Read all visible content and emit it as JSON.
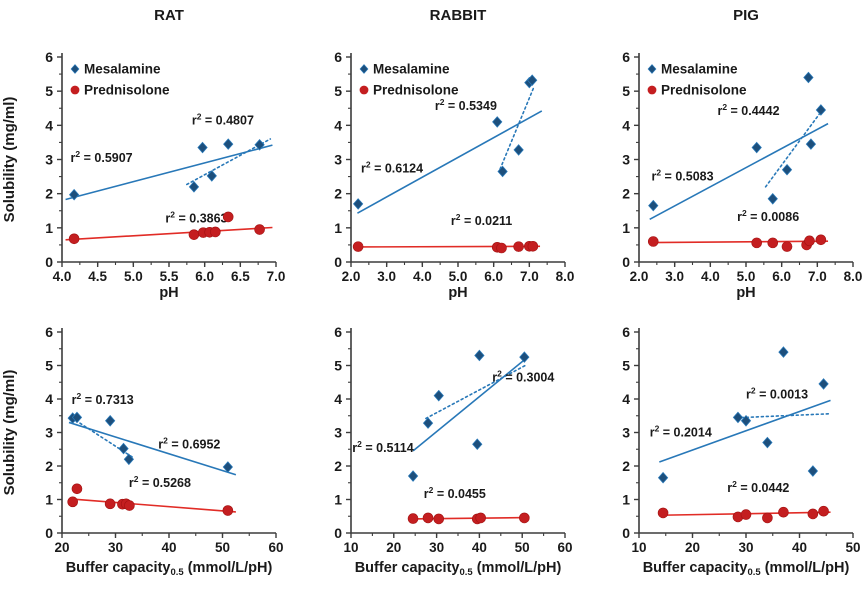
{
  "figure": {
    "ylabel": "Solubility (mg/ml)",
    "colors": {
      "mesalamine_marker": "#1d4f7c",
      "mesalamine_line": "#2878b8",
      "prednisolone_marker": "#c41e20",
      "prednisolone_line": "#e12c26",
      "black_text": "#1a1a1a",
      "blue_text": "#2878b8",
      "red_text": "#e8201a",
      "axis": "#3c3c3c"
    },
    "legend": {
      "items": [
        {
          "label": "Mesalamine",
          "marker": "diamond",
          "color": "#1d4f7c"
        },
        {
          "label": "Prednisolone",
          "marker": "circle",
          "color": "#c41e20"
        }
      ]
    }
  },
  "chart_data": [
    {
      "type": "scatter",
      "title": "RAT",
      "legend": true,
      "xlabel": {
        "text": "pH",
        "sub": "",
        "rest": ""
      },
      "ylabel": "Solubility (mg/ml)",
      "xlim": [
        4.0,
        7.0
      ],
      "ylim": [
        0,
        6
      ],
      "xminor": 0.25,
      "yminor": 0.5,
      "xticks": [
        [
          4.0,
          "4.0"
        ],
        [
          4.5,
          "4.5"
        ],
        [
          5.0,
          "5.0"
        ],
        [
          5.5,
          "5.5"
        ],
        [
          6.0,
          "6.0"
        ],
        [
          6.5,
          "6.5"
        ],
        [
          7.0,
          "7.0"
        ]
      ],
      "yticks": [
        [
          0,
          "0"
        ],
        [
          1,
          "1"
        ],
        [
          2,
          "2"
        ],
        [
          3,
          "3"
        ],
        [
          4,
          "4"
        ],
        [
          5,
          "5"
        ],
        [
          6,
          "6"
        ]
      ],
      "series": [
        {
          "name": "Mesalamine",
          "marker": "diamond",
          "points": [
            [
              4.17,
              1.97
            ],
            [
              5.85,
              2.2
            ],
            [
              5.97,
              3.35
            ],
            [
              6.1,
              2.52
            ],
            [
              6.33,
              3.45
            ],
            [
              6.77,
              3.43
            ]
          ],
          "trends": [
            {
              "style": "solid",
              "x1": 4.05,
              "y1": 1.83,
              "x2": 6.95,
              "y2": 3.42,
              "r2": "0.5907",
              "label_x": 4.12,
              "label_y": 2.92,
              "label_color": "black"
            },
            {
              "style": "dotted",
              "x1": 5.75,
              "y1": 2.27,
              "x2": 6.92,
              "y2": 3.6,
              "r2": "0.4807",
              "label_x": 5.82,
              "label_y": 4.02,
              "label_color": "blue"
            }
          ]
        },
        {
          "name": "Prednisolone",
          "marker": "circle",
          "points": [
            [
              4.17,
              0.68
            ],
            [
              5.85,
              0.8
            ],
            [
              5.98,
              0.86
            ],
            [
              6.07,
              0.87
            ],
            [
              6.15,
              0.88
            ],
            [
              6.33,
              1.32
            ],
            [
              6.77,
              0.95
            ]
          ],
          "trends": [
            {
              "style": "solid",
              "x1": 4.05,
              "y1": 0.65,
              "x2": 6.95,
              "y2": 1.01,
              "r2": "0.3863",
              "label_x": 5.45,
              "label_y": 1.15,
              "label_color": "red"
            }
          ]
        }
      ]
    },
    {
      "type": "scatter",
      "title": "RABBIT",
      "legend": true,
      "xlabel": {
        "text": "pH",
        "sub": "",
        "rest": ""
      },
      "ylabel": "",
      "xlim": [
        2.0,
        8.0
      ],
      "ylim": [
        0,
        6
      ],
      "xminor": 0.5,
      "yminor": 0.5,
      "xticks": [
        [
          2.0,
          "2.0"
        ],
        [
          3.0,
          "3.0"
        ],
        [
          4.0,
          "4.0"
        ],
        [
          5.0,
          "5.0"
        ],
        [
          6.0,
          "6.0"
        ],
        [
          7.0,
          "7.0"
        ],
        [
          8.0,
          "8.0"
        ]
      ],
      "yticks": [
        [
          0,
          "0"
        ],
        [
          1,
          "1"
        ],
        [
          2,
          "2"
        ],
        [
          3,
          "3"
        ],
        [
          4,
          "4"
        ],
        [
          5,
          "5"
        ],
        [
          6,
          "6"
        ]
      ],
      "series": [
        {
          "name": "Mesalamine",
          "marker": "diamond",
          "points": [
            [
              2.2,
              1.7
            ],
            [
              6.1,
              4.1
            ],
            [
              6.25,
              2.65
            ],
            [
              6.7,
              3.28
            ],
            [
              7.0,
              5.25
            ],
            [
              7.08,
              5.32
            ]
          ],
          "trends": [
            {
              "style": "solid",
              "x1": 2.18,
              "y1": 1.43,
              "x2": 7.35,
              "y2": 4.42,
              "r2": "0.6124",
              "label_x": 2.28,
              "label_y": 2.62,
              "label_color": "black"
            },
            {
              "style": "dotted",
              "x1": 6.18,
              "y1": 2.72,
              "x2": 7.12,
              "y2": 5.1,
              "r2": "0.5349",
              "label_x": 4.35,
              "label_y": 4.45,
              "label_color": "blue"
            }
          ]
        },
        {
          "name": "Prednisolone",
          "marker": "circle",
          "points": [
            [
              2.2,
              0.45
            ],
            [
              6.1,
              0.43
            ],
            [
              6.22,
              0.41
            ],
            [
              6.7,
              0.45
            ],
            [
              7.0,
              0.46
            ],
            [
              7.1,
              0.46
            ]
          ],
          "trends": [
            {
              "style": "solid",
              "x1": 2.15,
              "y1": 0.44,
              "x2": 7.3,
              "y2": 0.46,
              "r2": "0.0211",
              "label_x": 4.8,
              "label_y": 1.08,
              "label_color": "red"
            }
          ]
        }
      ]
    },
    {
      "type": "scatter",
      "title": "PIG",
      "legend": true,
      "xlabel": {
        "text": "pH",
        "sub": "",
        "rest": ""
      },
      "ylabel": "",
      "xlim": [
        2.0,
        8.0
      ],
      "ylim": [
        0,
        6
      ],
      "xminor": 0.5,
      "yminor": 0.5,
      "xticks": [
        [
          2.0,
          "2.0"
        ],
        [
          3.0,
          "3.0"
        ],
        [
          4.0,
          "4.0"
        ],
        [
          5.0,
          "5.0"
        ],
        [
          6.0,
          "6.0"
        ],
        [
          7.0,
          "7.0"
        ],
        [
          8.0,
          "8.0"
        ]
      ],
      "yticks": [
        [
          0,
          "0"
        ],
        [
          1,
          "1"
        ],
        [
          2,
          "2"
        ],
        [
          3,
          "3"
        ],
        [
          4,
          "4"
        ],
        [
          5,
          "5"
        ],
        [
          6,
          "6"
        ]
      ],
      "series": [
        {
          "name": "Mesalamine",
          "marker": "diamond",
          "points": [
            [
              2.4,
              1.65
            ],
            [
              5.3,
              3.35
            ],
            [
              5.75,
              1.85
            ],
            [
              6.15,
              2.7
            ],
            [
              6.75,
              5.4
            ],
            [
              6.82,
              3.45
            ],
            [
              7.1,
              4.45
            ]
          ],
          "trends": [
            {
              "style": "solid",
              "x1": 2.3,
              "y1": 1.25,
              "x2": 7.3,
              "y2": 4.05,
              "r2": "0.5083",
              "label_x": 2.35,
              "label_y": 2.38,
              "label_color": "black"
            },
            {
              "style": "dotted",
              "x1": 5.55,
              "y1": 2.2,
              "x2": 7.12,
              "y2": 4.42,
              "r2": "0.4442",
              "label_x": 4.2,
              "label_y": 4.3,
              "label_color": "blue"
            }
          ]
        },
        {
          "name": "Prednisolone",
          "marker": "circle",
          "points": [
            [
              2.4,
              0.6
            ],
            [
              5.3,
              0.56
            ],
            [
              5.75,
              0.56
            ],
            [
              6.15,
              0.45
            ],
            [
              6.7,
              0.5
            ],
            [
              6.78,
              0.62
            ],
            [
              7.1,
              0.65
            ]
          ],
          "trends": [
            {
              "style": "solid",
              "x1": 2.3,
              "y1": 0.57,
              "x2": 7.3,
              "y2": 0.61,
              "r2": "0.0086",
              "label_x": 4.75,
              "label_y": 1.2,
              "label_color": "red"
            }
          ]
        }
      ]
    },
    {
      "type": "scatter",
      "title": "",
      "legend": false,
      "xlabel": {
        "text": "Buffer capacity",
        "sub": "0.5",
        "rest": " (mmol/L/pH)"
      },
      "ylabel": "Solubility (mg/ml)",
      "xlim": [
        20,
        60
      ],
      "ylim": [
        0,
        6
      ],
      "xminor": 5,
      "yminor": 0.5,
      "xticks": [
        [
          20,
          "20"
        ],
        [
          30,
          "30"
        ],
        [
          40,
          "40"
        ],
        [
          50,
          "50"
        ],
        [
          60,
          "60"
        ]
      ],
      "yticks": [
        [
          0,
          "0"
        ],
        [
          1,
          "1"
        ],
        [
          2,
          "2"
        ],
        [
          3,
          "3"
        ],
        [
          4,
          "4"
        ],
        [
          5,
          "5"
        ],
        [
          6,
          "6"
        ]
      ],
      "series": [
        {
          "name": "Mesalamine",
          "marker": "diamond",
          "points": [
            [
              22.0,
              3.43
            ],
            [
              22.8,
              3.45
            ],
            [
              29.0,
              3.35
            ],
            [
              31.5,
              2.52
            ],
            [
              32.5,
              2.2
            ],
            [
              51.0,
              1.97
            ]
          ],
          "trends": [
            {
              "style": "solid",
              "x1": 21.3,
              "y1": 3.3,
              "x2": 52.5,
              "y2": 1.74,
              "r2": "0.6952",
              "label_x": 38.0,
              "label_y": 2.52,
              "label_color": "black"
            },
            {
              "style": "dotted",
              "x1": 21.8,
              "y1": 3.44,
              "x2": 33.2,
              "y2": 2.26,
              "r2": "0.7313",
              "label_x": 21.8,
              "label_y": 3.85,
              "label_color": "blue"
            }
          ]
        },
        {
          "name": "Prednisolone",
          "marker": "circle",
          "points": [
            [
              22.0,
              0.93
            ],
            [
              22.8,
              1.32
            ],
            [
              29.0,
              0.87
            ],
            [
              31.3,
              0.86
            ],
            [
              32.0,
              0.87
            ],
            [
              32.6,
              0.82
            ],
            [
              51.0,
              0.67
            ]
          ],
          "trends": [
            {
              "style": "solid",
              "x1": 21.3,
              "y1": 1.02,
              "x2": 52.5,
              "y2": 0.63,
              "r2": "0.5268",
              "label_x": 32.5,
              "label_y": 1.38,
              "label_color": "red"
            }
          ]
        }
      ]
    },
    {
      "type": "scatter",
      "title": "",
      "legend": false,
      "xlabel": {
        "text": "Buffer capacity",
        "sub": "0.5",
        "rest": " (mmol/L/pH)"
      },
      "ylabel": "",
      "xlim": [
        10,
        60
      ],
      "ylim": [
        0,
        6
      ],
      "xminor": 5,
      "yminor": 0.5,
      "xticks": [
        [
          10,
          "10"
        ],
        [
          20,
          "20"
        ],
        [
          30,
          "30"
        ],
        [
          40,
          "40"
        ],
        [
          50,
          "50"
        ],
        [
          60,
          "60"
        ]
      ],
      "yticks": [
        [
          0,
          "0"
        ],
        [
          1,
          "1"
        ],
        [
          2,
          "2"
        ],
        [
          3,
          "3"
        ],
        [
          4,
          "4"
        ],
        [
          5,
          "5"
        ],
        [
          6,
          "6"
        ]
      ],
      "series": [
        {
          "name": "Mesalamine",
          "marker": "diamond",
          "points": [
            [
              24.5,
              1.7
            ],
            [
              28.0,
              3.28
            ],
            [
              30.5,
              4.1
            ],
            [
              39.5,
              2.65
            ],
            [
              40.0,
              5.3
            ],
            [
              50.5,
              5.25
            ]
          ],
          "trends": [
            {
              "style": "solid",
              "x1": 24.5,
              "y1": 2.45,
              "x2": 51.0,
              "y2": 5.22,
              "r2": "0.5114",
              "label_x": 10.3,
              "label_y": 2.42,
              "label_color": "black"
            },
            {
              "style": "dotted",
              "x1": 27.5,
              "y1": 3.42,
              "x2": 51.0,
              "y2": 5.02,
              "r2": "0.3004",
              "label_x": 43.0,
              "label_y": 4.52,
              "label_color": "blue"
            }
          ]
        },
        {
          "name": "Prednisolone",
          "marker": "circle",
          "points": [
            [
              24.5,
              0.43
            ],
            [
              28.0,
              0.45
            ],
            [
              30.5,
              0.42
            ],
            [
              39.5,
              0.42
            ],
            [
              40.3,
              0.45
            ],
            [
              50.5,
              0.45
            ]
          ],
          "trends": [
            {
              "style": "solid",
              "x1": 24.0,
              "y1": 0.42,
              "x2": 51.0,
              "y2": 0.46,
              "r2": "0.0455",
              "label_x": 27.0,
              "label_y": 1.05,
              "label_color": "red"
            }
          ]
        }
      ]
    },
    {
      "type": "scatter",
      "title": "",
      "legend": false,
      "xlabel": {
        "text": "Buffer capacity",
        "sub": "0.5",
        "rest": " (mmol/L/pH)"
      },
      "ylabel": "",
      "xlim": [
        10,
        50
      ],
      "ylim": [
        0,
        6
      ],
      "xminor": 5,
      "yminor": 0.5,
      "xticks": [
        [
          10,
          "10"
        ],
        [
          20,
          "20"
        ],
        [
          30,
          "30"
        ],
        [
          40,
          "40"
        ],
        [
          50,
          "50"
        ]
      ],
      "yticks": [
        [
          0,
          "0"
        ],
        [
          1,
          "1"
        ],
        [
          2,
          "2"
        ],
        [
          3,
          "3"
        ],
        [
          4,
          "4"
        ],
        [
          5,
          "5"
        ],
        [
          6,
          "6"
        ]
      ],
      "series": [
        {
          "name": "Mesalamine",
          "marker": "diamond",
          "points": [
            [
              14.5,
              1.65
            ],
            [
              28.5,
              3.45
            ],
            [
              30.0,
              3.35
            ],
            [
              34.0,
              2.7
            ],
            [
              37.0,
              5.4
            ],
            [
              42.5,
              1.85
            ],
            [
              44.5,
              4.45
            ]
          ],
          "trends": [
            {
              "style": "solid",
              "x1": 13.8,
              "y1": 2.12,
              "x2": 45.8,
              "y2": 3.96,
              "r2": "0.2014",
              "label_x": 12.0,
              "label_y": 2.88,
              "label_color": "black"
            },
            {
              "style": "dotted",
              "x1": 28.2,
              "y1": 3.44,
              "x2": 45.8,
              "y2": 3.56,
              "r2": "0.0013",
              "label_x": 30.0,
              "label_y": 4.02,
              "label_color": "blue"
            }
          ]
        },
        {
          "name": "Prednisolone",
          "marker": "circle",
          "points": [
            [
              14.5,
              0.6
            ],
            [
              28.5,
              0.48
            ],
            [
              30.0,
              0.55
            ],
            [
              34.0,
              0.45
            ],
            [
              37.0,
              0.62
            ],
            [
              42.5,
              0.57
            ],
            [
              44.5,
              0.65
            ]
          ],
          "trends": [
            {
              "style": "solid",
              "x1": 13.8,
              "y1": 0.53,
              "x2": 45.8,
              "y2": 0.62,
              "r2": "0.0442",
              "label_x": 26.5,
              "label_y": 1.22,
              "label_color": "red"
            }
          ]
        }
      ]
    }
  ]
}
